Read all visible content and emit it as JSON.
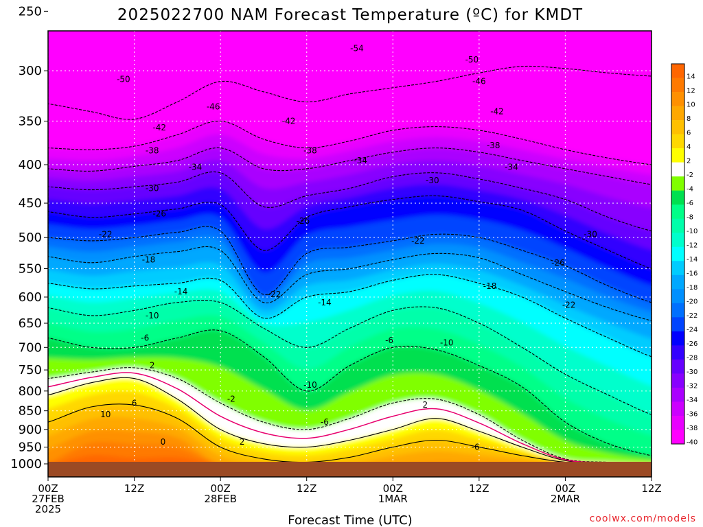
{
  "title": "2025022700 NAM Forecast Temperature (ºC) for KMDT",
  "credit": "coolwx.com/models",
  "chart_data": {
    "type": "heatmap",
    "title": "2025022700 NAM Forecast Temperature (ºC) for KMDT",
    "xlabel": "Forecast Time (UTC)",
    "ylabel": "",
    "x_ticks": [
      {
        "hour": 0,
        "lines": [
          "00Z",
          "27FEB",
          "2025"
        ]
      },
      {
        "hour": 12,
        "lines": [
          "12Z"
        ]
      },
      {
        "hour": 24,
        "lines": [
          "00Z",
          "28FEB"
        ]
      },
      {
        "hour": 36,
        "lines": [
          "12Z"
        ]
      },
      {
        "hour": 48,
        "lines": [
          "00Z",
          "1MAR"
        ]
      },
      {
        "hour": 60,
        "lines": [
          "12Z"
        ]
      },
      {
        "hour": 72,
        "lines": [
          "00Z",
          "2MAR"
        ]
      },
      {
        "hour": 84,
        "lines": [
          "12Z"
        ]
      }
    ],
    "xlim_hours": [
      0,
      84
    ],
    "y_ticks": [
      250,
      300,
      350,
      400,
      450,
      500,
      550,
      600,
      650,
      700,
      750,
      800,
      850,
      900,
      950,
      1000
    ],
    "ylim_hpa": [
      200,
      1000
    ],
    "y_scale": "log-pressure",
    "grid": true,
    "colorbar": {
      "position": "right",
      "unit": "ºC",
      "labels": [
        "14",
        "12",
        "10",
        "8",
        "6",
        "4",
        "2",
        "-2",
        "-4",
        "-6",
        "-8",
        "-10",
        "-12",
        "-14",
        "-16",
        "-18",
        "-20",
        "-22",
        "-24",
        "-26",
        "-28",
        "-30",
        "-32",
        "-34",
        "-36",
        "-38",
        "-40"
      ],
      "colors": [
        "#ff6600",
        "#ff7a00",
        "#ff9000",
        "#ffa800",
        "#ffc000",
        "#ffd800",
        "#ffff00",
        "#ffffff",
        "#80ff00",
        "#00e050",
        "#00ff88",
        "#00ffaa",
        "#00ffcc",
        "#00ffff",
        "#00ccff",
        "#00a8ff",
        "#0090ff",
        "#0070ff",
        "#0044ff",
        "#0000ff",
        "#3300ff",
        "#6600ff",
        "#8800ff",
        "#aa00ff",
        "#cc00ff",
        "#e800ff",
        "#ff00ff"
      ]
    },
    "anchors_hours": [
      0,
      6,
      12,
      18,
      24,
      30,
      36,
      42,
      48,
      54,
      60,
      66,
      72,
      78,
      84
    ],
    "isotherms_hpa": [
      {
        "t": -46,
        "p": [
          250,
          260,
          262,
          258,
          248,
          248,
          242,
          232,
          228,
          232,
          236,
          234,
          232,
          230,
          230
        ]
      },
      {
        "t": -42,
        "p": [
          332,
          340,
          348,
          330,
          310,
          320,
          330,
          322,
          316,
          310,
          302,
          296,
          298,
          302,
          305
        ]
      },
      {
        "t": -38,
        "p": [
          380,
          382,
          378,
          365,
          350,
          370,
          380,
          372,
          360,
          356,
          360,
          370,
          382,
          392,
          400
        ]
      },
      {
        "t": -34,
        "p": [
          405,
          408,
          402,
          395,
          380,
          405,
          405,
          395,
          385,
          380,
          385,
          395,
          405,
          415,
          425
        ]
      },
      {
        "t": -30,
        "p": [
          428,
          432,
          428,
          422,
          410,
          455,
          440,
          430,
          415,
          410,
          418,
          430,
          445,
          470,
          490
        ]
      },
      {
        "t": -26,
        "p": [
          462,
          470,
          465,
          458,
          452,
          520,
          470,
          455,
          445,
          440,
          448,
          460,
          490,
          520,
          550
        ]
      },
      {
        "t": -22,
        "p": [
          500,
          505,
          500,
          492,
          490,
          595,
          525,
          515,
          505,
          495,
          500,
          520,
          545,
          580,
          610
        ]
      },
      {
        "t": -18,
        "p": [
          530,
          540,
          530,
          522,
          520,
          610,
          560,
          550,
          535,
          525,
          532,
          560,
          590,
          620,
          645
        ]
      },
      {
        "t": -14,
        "p": [
          575,
          585,
          580,
          575,
          570,
          640,
          600,
          590,
          570,
          560,
          575,
          600,
          640,
          680,
          720
        ]
      },
      {
        "t": -10,
        "p": [
          620,
          635,
          625,
          610,
          610,
          660,
          700,
          660,
          625,
          620,
          650,
          700,
          760,
          810,
          860
        ]
      },
      {
        "t": -6,
        "p": [
          680,
          700,
          700,
          680,
          665,
          720,
          800,
          740,
          700,
          705,
          740,
          790,
          880,
          940,
          975
        ]
      },
      {
        "t": -2,
        "p": [
          770,
          755,
          745,
          770,
          830,
          880,
          900,
          870,
          830,
          820,
          860,
          930,
          985,
          995,
          998
        ]
      },
      {
        "t": 2,
        "p": [
          810,
          780,
          770,
          820,
          900,
          940,
          950,
          930,
          900,
          870,
          905,
          950,
          990,
          998,
          999
        ]
      },
      {
        "t": 6,
        "p": [
          880,
          840,
          835,
          870,
          950,
          985,
          995,
          980,
          950,
          930,
          950,
          975,
          995,
          999,
          1000
        ]
      }
    ],
    "contour_labels": [
      {
        "text": "-46",
        "h": 13,
        "p": 240
      },
      {
        "text": "-54",
        "h": 43,
        "p": 280
      },
      {
        "text": "-50",
        "h": 10.5,
        "p": 308
      },
      {
        "text": "-50",
        "h": 59,
        "p": 290
      },
      {
        "text": "-46",
        "h": 23,
        "p": 335
      },
      {
        "text": "-46",
        "h": 60,
        "p": 310
      },
      {
        "text": "-42",
        "h": 15.5,
        "p": 357
      },
      {
        "text": "-42",
        "h": 33.5,
        "p": 350
      },
      {
        "text": "-42",
        "h": 62.5,
        "p": 340
      },
      {
        "text": "-38",
        "h": 14.5,
        "p": 383
      },
      {
        "text": "-38",
        "h": 36.5,
        "p": 383
      },
      {
        "text": "-38",
        "h": 62,
        "p": 377
      },
      {
        "text": "-34",
        "h": 20.5,
        "p": 403
      },
      {
        "text": "-34",
        "h": 43.5,
        "p": 395
      },
      {
        "text": "-34",
        "h": 64.5,
        "p": 403
      },
      {
        "text": "-30",
        "h": 14.5,
        "p": 430
      },
      {
        "text": "-30",
        "h": 53.5,
        "p": 420
      },
      {
        "text": "-30",
        "h": 75.5,
        "p": 495
      },
      {
        "text": "-26",
        "h": 15.5,
        "p": 465
      },
      {
        "text": "-26",
        "h": 35.5,
        "p": 475
      },
      {
        "text": "-26",
        "h": 71,
        "p": 540
      },
      {
        "text": "-22",
        "h": 8,
        "p": 495
      },
      {
        "text": "-22",
        "h": 51.5,
        "p": 505
      },
      {
        "text": "-22",
        "h": 31.5,
        "p": 595
      },
      {
        "text": "-22",
        "h": 72.5,
        "p": 615
      },
      {
        "text": "-18",
        "h": 14,
        "p": 535
      },
      {
        "text": "-18",
        "h": 61.5,
        "p": 580
      },
      {
        "text": "-14",
        "h": 18.5,
        "p": 590
      },
      {
        "text": "-14",
        "h": 38.5,
        "p": 610
      },
      {
        "text": "-10",
        "h": 14.5,
        "p": 635
      },
      {
        "text": "-10",
        "h": 55.5,
        "p": 690
      },
      {
        "text": "-10",
        "h": 36.5,
        "p": 785
      },
      {
        "text": "-6",
        "h": 13.5,
        "p": 680
      },
      {
        "text": "-6",
        "h": 47.5,
        "p": 685
      },
      {
        "text": "-6",
        "h": 38.5,
        "p": 880
      },
      {
        "text": "-6",
        "h": 59.5,
        "p": 950
      },
      {
        "text": "-2",
        "h": 25.5,
        "p": 820
      },
      {
        "text": "2",
        "h": 14.5,
        "p": 740
      },
      {
        "text": "2",
        "h": 27,
        "p": 935
      },
      {
        "text": "2",
        "h": 52.5,
        "p": 835
      },
      {
        "text": "6",
        "h": 12,
        "p": 830
      },
      {
        "text": "10",
        "h": 8,
        "p": 860
      },
      {
        "text": "0",
        "h": 16,
        "p": 935
      }
    ]
  }
}
